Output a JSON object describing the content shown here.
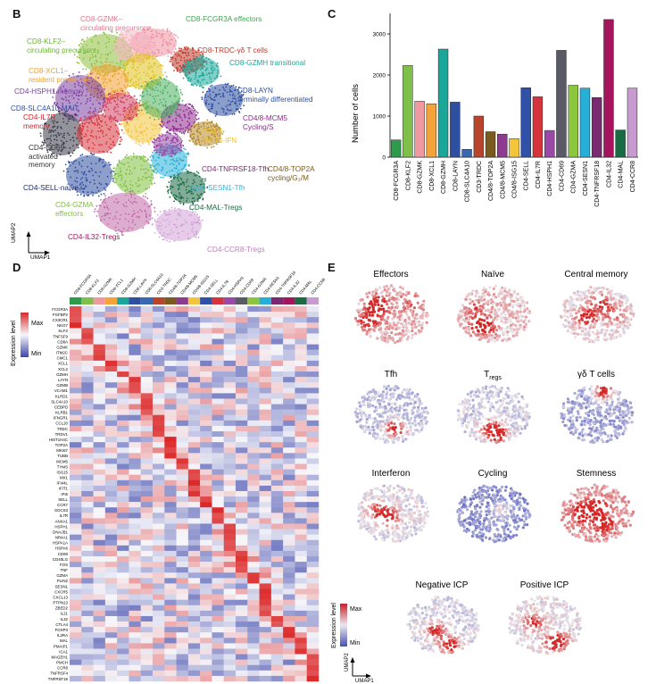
{
  "panels": {
    "B": "B",
    "C": "C",
    "D": "D",
    "E": "E"
  },
  "umap_axes": {
    "x": "UMAP1",
    "y": "UMAP2"
  },
  "clusterLabels": [
    {
      "text": "CD8-GZMK–\ncirculating precursors",
      "color": "#e6738c"
    },
    {
      "text": "CD8-FCGR3A effectors",
      "color": "#3aa84a"
    },
    {
      "text": "CD8-KLF2–\ncirculating precursors",
      "color": "#6fb33a"
    },
    {
      "text": "CD8-TRDC-γδ T cells",
      "color": "#c0392b"
    },
    {
      "text": "CD8-GZMH transitional",
      "color": "#1aa79a"
    },
    {
      "text": "CD8-XCL1–\nresident precursors",
      "color": "#f0a030"
    },
    {
      "text": "CD4-HSPH1 memory",
      "color": "#7b3fa0"
    },
    {
      "text": "CD8-LAYN\nterminally differentiated",
      "color": "#2c4fa0"
    },
    {
      "text": "CD8-SLC4A10-MAIT",
      "color": "#2c4fa0"
    },
    {
      "text": "CD4-IL7R\nmemory",
      "color": "#d01f2b"
    },
    {
      "text": "CD4/8-MCM5\nCycling/S",
      "color": "#8e2a8e"
    },
    {
      "text": "CD4/8-\nISG15-IFN",
      "color": "#f0c030"
    },
    {
      "text": "CD4-CD69-\nactivated\nmemory",
      "color": "#333333"
    },
    {
      "text": "CD4-TNFRSF18-Tfh",
      "color": "#7a2a70"
    },
    {
      "text": "CD4/8-TOP2A\ncycling/G₂/M",
      "color": "#7a5a15"
    },
    {
      "text": "CD4-SELL-naïve",
      "color": "#1c2a6a"
    },
    {
      "text": "CD4-SESN1-Tfh",
      "color": "#3ab0d8"
    },
    {
      "text": "CD4-GZMA\neffectors",
      "color": "#7fbf40"
    },
    {
      "text": "CD4-MAL-Tregs",
      "color": "#1a6a40"
    },
    {
      "text": "CD4-IL32-Tregs",
      "color": "#a01560"
    },
    {
      "text": "CD4-CCR8-Tregs",
      "color": "#c080c0"
    }
  ],
  "chart_data": {
    "type": "bar",
    "ylabel": "Number of cells",
    "ylim": [
      0,
      3500
    ],
    "yticks": [
      0,
      1000,
      2000,
      3000
    ],
    "categories": [
      "CD8-FCGR3A",
      "CD8-KLF2",
      "CD8-GZMK",
      "CD8-XCL1",
      "CD8-GZMH",
      "CD8-LAYN",
      "CD8-SLC4A10",
      "CD3-TRDC",
      "CD4/8-TOP2A",
      "CD4/8-MCM5",
      "CD4/8-ISG15",
      "CD4-SELL",
      "CD4-IL7R",
      "CD4-HSPH1",
      "CD4-CD69",
      "CD4-GZMA",
      "CD4-SESN1",
      "CD4-TNFRSF18",
      "CD4-IL32",
      "CD4-MAL",
      "CD4-CCR8"
    ],
    "values": [
      420,
      2230,
      1360,
      1300,
      2630,
      1340,
      190,
      1000,
      620,
      560,
      450,
      1690,
      1470,
      650,
      2600,
      1750,
      1680,
      1450,
      3350,
      660,
      1680
    ],
    "colors": [
      "#2e9a4c",
      "#7fbf4a",
      "#ef9aa0",
      "#f5a338",
      "#1aa79a",
      "#2f4fa0",
      "#3868b0",
      "#b8442c",
      "#7a5a1e",
      "#8e3a8e",
      "#f3c53c",
      "#3151a8",
      "#d6343c",
      "#9a4aa6",
      "#5a5a66",
      "#8cc63f",
      "#26b0d8",
      "#7a2a70",
      "#a5155e",
      "#1a6a44",
      "#c79ad0"
    ]
  },
  "heatmap": {
    "legend_title": "Expression level",
    "max_label": "Max",
    "min_label": "Min",
    "columns": [
      "CD8-FCGR3A",
      "CD8-KLF2",
      "CD8-GZMK",
      "CD8-XCL1",
      "CD8-GZMH",
      "CD8-LAYN",
      "CD8-SLC4A10",
      "CD3-TRDC",
      "CD4/8-TOP2A",
      "CD4/8-MCM5",
      "CD4/8-ISG15",
      "CD4-SELL",
      "CD4-IL7R",
      "CD4-HSPH1",
      "CD4-CD69",
      "CD4-GZMA",
      "CD4-SESN1",
      "CD4-TNFRSF18",
      "CD4-IL32",
      "CD4-MAL",
      "CD4-CCR8"
    ],
    "genes": [
      "FCGR3A",
      "FGFBP2",
      "CX3CR1",
      "NKG7",
      "KLF2",
      "TNFSF9",
      "CD8A",
      "GZMK",
      "ITM2C",
      "CMC1",
      "XCL1",
      "XCL2",
      "GZMH",
      "LAYN",
      "GZMB",
      "VCAM1",
      "KLRD1",
      "SLC4A10",
      "CEBPD",
      "KLRB1",
      "IFNGR1",
      "CCL20",
      "TRDC",
      "TRDV1",
      "HIST1H4C",
      "TOP2A",
      "MKI67",
      "TUBB",
      "MCM5",
      "TYMS",
      "ISG15",
      "MX1",
      "IFI44L",
      "IFIT1",
      "IFI6",
      "SELL",
      "CCR7",
      "SOCS3",
      "IL7R",
      "ANXA1",
      "HSPH1",
      "DNAJB1",
      "NR4A1",
      "HSPA1A",
      "HSPA6",
      "CD69",
      "CD40LG",
      "FOS",
      "TNF",
      "GZMA",
      "PLIN2",
      "SESN1",
      "CXCR5",
      "CXCL13",
      "PTPN13",
      "ZBED2",
      "IL21",
      "IL32",
      "CTLA4",
      "FOXP3",
      "IL2RA",
      "MAL",
      "PMAIP1",
      "ICA1",
      "MAGEH1",
      "PMCH",
      "CCR8",
      "TNFRSF4",
      "TNFRSF18"
    ]
  },
  "umap_panels": [
    {
      "title": "Effectors",
      "sub": ""
    },
    {
      "title": "Naïve",
      "sub": ""
    },
    {
      "title": "Central memory",
      "sub": ""
    },
    {
      "title": "Tfh",
      "sub": ""
    },
    {
      "title": "T",
      "sub": "regs"
    },
    {
      "title": "γδ T cells",
      "sub": ""
    },
    {
      "title": "Interferon",
      "sub": ""
    },
    {
      "title": "Cycling",
      "sub": ""
    },
    {
      "title": "Stemness",
      "sub": ""
    },
    {
      "title": "Negative ICP",
      "sub": ""
    },
    {
      "title": "Positive ICP",
      "sub": ""
    }
  ],
  "e_legend": {
    "title": "Expression level",
    "max": "Max",
    "min": "Min"
  }
}
